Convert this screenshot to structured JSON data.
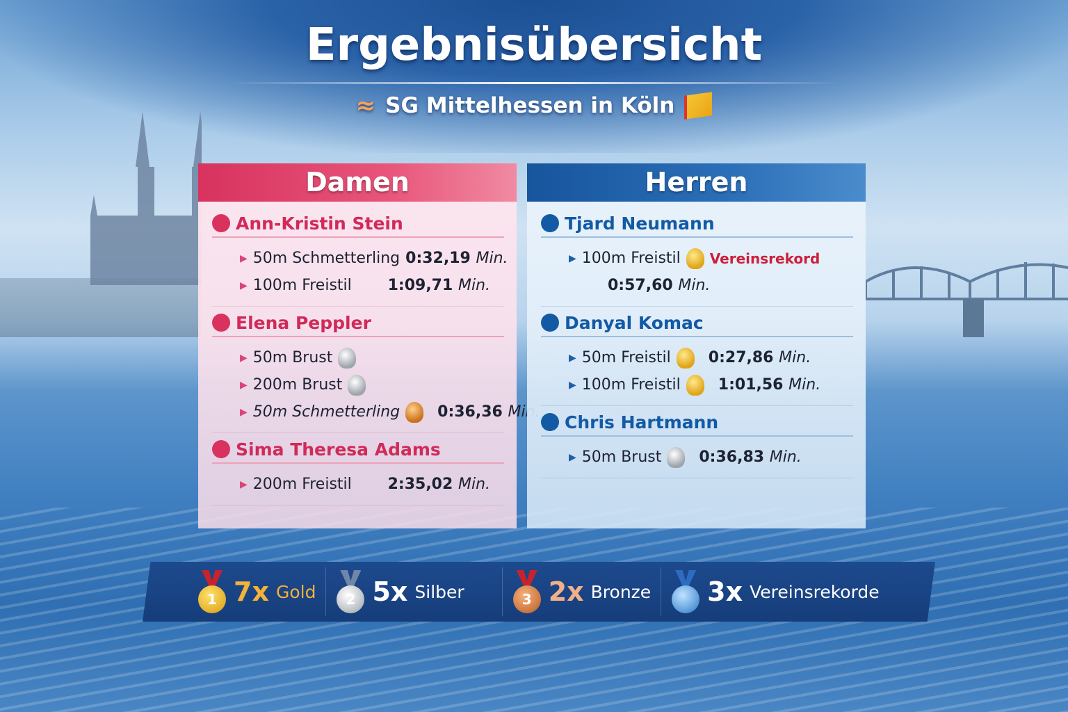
{
  "header": {
    "title": "Ergebnisübersicht",
    "subtitle": "SG Mittelhessen in Köln"
  },
  "colors": {
    "damen": "#d9325f",
    "herren": "#135aa5",
    "summary_bg": "#1d4a8e",
    "gold": "#f3b23a",
    "silver": "#c8ccd2",
    "bronze": "#e9a47a",
    "record": "#cc1f3c"
  },
  "damen": {
    "title": "Damen",
    "athletes": [
      {
        "name": "Ann-Kristin Stein",
        "races": [
          {
            "event": "50m Schmetterling",
            "time": "0:32,19",
            "unit": "Min.",
            "award": ""
          },
          {
            "event": "100m Freistil",
            "time": "1:09,71",
            "unit": "Min.",
            "award": ""
          }
        ]
      },
      {
        "name": "Elena Peppler",
        "races": [
          {
            "event": "50m Brust",
            "time": "",
            "unit": "",
            "award": "silver"
          },
          {
            "event": "200m Brust",
            "time": "",
            "unit": "",
            "award": "silver"
          },
          {
            "event": "50m Schmetterling",
            "time": "0:36,36",
            "unit": "Min.",
            "award": "bronze"
          }
        ]
      },
      {
        "name": "Sima Theresa Adams",
        "races": [
          {
            "event": "200m Freistil",
            "time": "2:35,02",
            "unit": "Min.",
            "award": ""
          }
        ]
      }
    ]
  },
  "herren": {
    "title": "Herren",
    "athletes": [
      {
        "name": "Tjard Neumann",
        "races": [
          {
            "event": "100m Freistil",
            "time": "0:57,60",
            "unit": "Min.",
            "award": "gold",
            "note": "Vereinsrekord"
          }
        ]
      },
      {
        "name": "Danyal Komac",
        "races": [
          {
            "event": "50m Freistil",
            "time": "0:27,86",
            "unit": "Min.",
            "award": "gold"
          },
          {
            "event": "100m Freistil",
            "time": "1:01,56",
            "unit": "Min.",
            "award": "gold"
          }
        ]
      },
      {
        "name": "Chris Hartmann",
        "races": [
          {
            "event": "50m Brust",
            "time": "0:36,83",
            "unit": "Min.",
            "award": "silver"
          }
        ]
      }
    ]
  },
  "summary": [
    {
      "count": "7x",
      "label": "Gold",
      "medal_num": "1",
      "icon": "gold-medal-icon"
    },
    {
      "count": "5x",
      "label": "Silber",
      "medal_num": "2",
      "icon": "silver-medal-icon"
    },
    {
      "count": "2x",
      "label": "Bronze",
      "medal_num": "3",
      "icon": "bronze-medal-icon"
    },
    {
      "count": "3x",
      "label": "Vereinsrekorde",
      "medal_num": "",
      "icon": "swimmer-medal-icon"
    }
  ]
}
